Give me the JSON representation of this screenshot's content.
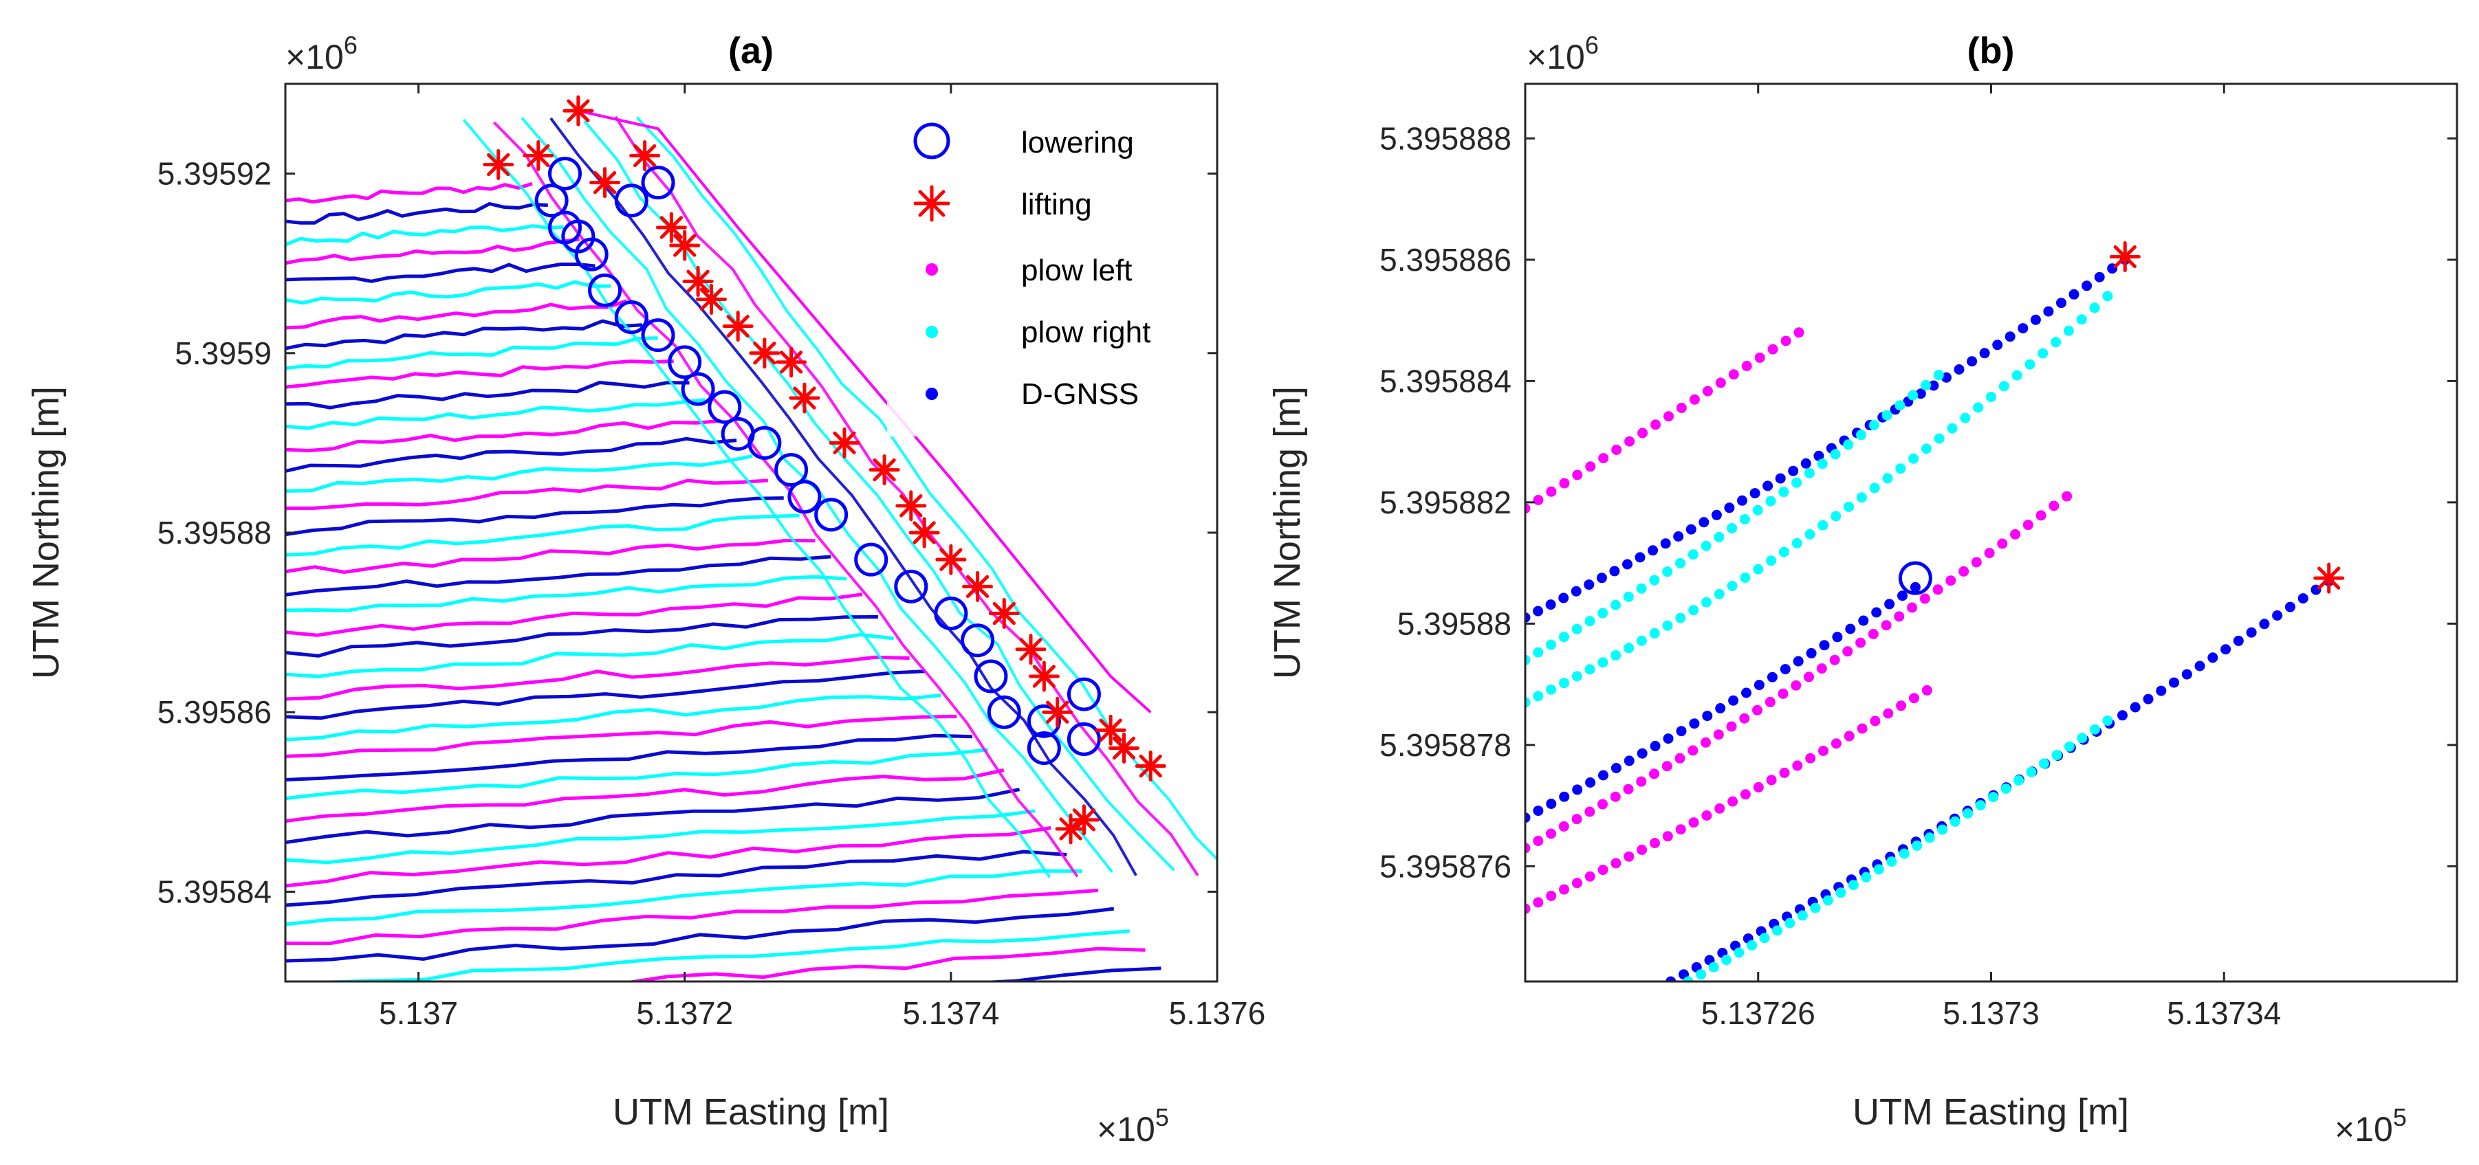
{
  "colors": {
    "lowering": "#0000ff",
    "lifting": "#ff0000",
    "plow_left": "#ff00ff",
    "plow_right": "#00ffff",
    "dgnss": "#0000ff",
    "dgnss_line": "#0a0ad2",
    "axis": "#262626",
    "shade": "#00b0b0"
  },
  "chart_data": [
    {
      "type": "line",
      "panel": "a",
      "title": "(a)",
      "xlabel": "UTM Easting [m]",
      "ylabel": "UTM Northing [m]",
      "x_multiplier": "×10",
      "x_exponent": "5",
      "y_multiplier": "×10",
      "y_exponent": "6",
      "xlim": [
        513690,
        513760
      ],
      "ylim": [
        5395830,
        5395930
      ],
      "xtick_values": [
        513700,
        513720,
        513740,
        513760
      ],
      "xtick_labels": [
        "5.137",
        "5.1372",
        "5.1374",
        "5.1376"
      ],
      "ytick_values": [
        5395840,
        5395860,
        5395880,
        5395900,
        5395920
      ],
      "ytick_labels": [
        "5.39584",
        "5.39586",
        "5.39588",
        "5.3959",
        "5.39592"
      ],
      "legend": {
        "position": "top-right",
        "entries": [
          "lowering",
          "lifting",
          "plow left",
          "plow right",
          "D-GNSS"
        ]
      },
      "field": {
        "left_x": 513690,
        "left_y_top": 5395917,
        "left_y_bottom": 5395826,
        "headland_top": [
          513707,
          5395920
        ],
        "headland_bottom": [
          513745,
          5395846
        ],
        "lane_spacing_m": 2.3,
        "lane_slope": 0.28
      },
      "lowering": [
        [
          513711,
          5395920
        ],
        [
          513710,
          5395917
        ],
        [
          513711,
          5395914
        ],
        [
          513716,
          5395917
        ],
        [
          513718,
          5395919
        ],
        [
          513712,
          5395913
        ],
        [
          513713,
          5395911
        ],
        [
          513714,
          5395907
        ],
        [
          513716,
          5395904
        ],
        [
          513718,
          5395902
        ],
        [
          513720,
          5395899
        ],
        [
          513721,
          5395896
        ],
        [
          513723,
          5395894
        ],
        [
          513724,
          5395891
        ],
        [
          513726,
          5395890
        ],
        [
          513728,
          5395887
        ],
        [
          513729,
          5395884
        ],
        [
          513731,
          5395882
        ],
        [
          513734,
          5395877
        ],
        [
          513737,
          5395874
        ],
        [
          513740,
          5395871
        ],
        [
          513742,
          5395868
        ],
        [
          513743,
          5395864
        ],
        [
          513744,
          5395860
        ],
        [
          513747,
          5395859
        ],
        [
          513750,
          5395862
        ],
        [
          513747,
          5395856
        ],
        [
          513750,
          5395857
        ]
      ],
      "lifting": [
        [
          513706,
          5395921
        ],
        [
          513709,
          5395922
        ],
        [
          513712,
          5395927
        ],
        [
          513714,
          5395919
        ],
        [
          513717,
          5395922
        ],
        [
          513719,
          5395914
        ],
        [
          513720,
          5395912
        ],
        [
          513721,
          5395908
        ],
        [
          513722,
          5395906
        ],
        [
          513724,
          5395903
        ],
        [
          513726,
          5395900
        ],
        [
          513728,
          5395899
        ],
        [
          513729,
          5395895
        ],
        [
          513732,
          5395890
        ],
        [
          513735,
          5395887
        ],
        [
          513737,
          5395883
        ],
        [
          513738,
          5395880
        ],
        [
          513740,
          5395877
        ],
        [
          513742,
          5395874
        ],
        [
          513744,
          5395871
        ],
        [
          513746,
          5395867
        ],
        [
          513747,
          5395864
        ],
        [
          513748,
          5395860
        ],
        [
          513752,
          5395858
        ],
        [
          513753,
          5395856
        ],
        [
          513755,
          5395854
        ],
        [
          513749,
          5395847
        ],
        [
          513750,
          5395848
        ]
      ]
    },
    {
      "type": "scatter",
      "panel": "b",
      "title": "(b)",
      "xlabel": "UTM Easting [m]",
      "ylabel": "UTM Northing [m]",
      "x_multiplier": "×10",
      "x_exponent": "5",
      "y_multiplier": "×10",
      "y_exponent": "6",
      "xlim": [
        513722,
        513738
      ],
      "ylim": [
        5395874.1,
        5395888.9
      ],
      "xtick_values": [
        513726,
        513730,
        513734
      ],
      "xtick_labels": [
        "5.13726",
        "5.1373",
        "5.13734"
      ],
      "ytick_values": [
        5395876,
        5395878,
        5395880,
        5395882,
        5395884,
        5395886,
        5395888
      ],
      "ytick_labels": [
        "5.395876",
        "5.395878",
        "5.39588",
        "5.395882",
        "5.395884",
        "5.395886",
        "5.395888"
      ],
      "series": [
        {
          "name": "D-GNSS",
          "kind": "dgnss",
          "start": [
            513722,
            5395880.1
          ],
          "end": [
            513732.3,
            5395886
          ],
          "curve": 0.15
        },
        {
          "name": "D-GNSS",
          "kind": "dgnss",
          "start": [
            513722,
            5395876.8
          ],
          "end": [
            513728.7,
            5395880.6
          ],
          "curve": 0.1
        },
        {
          "name": "D-GNSS",
          "kind": "dgnss",
          "start": [
            513724.5,
            5395874.1
          ],
          "end": [
            513735.8,
            5395880.7
          ],
          "curve": 0.1
        },
        {
          "name": "plow left",
          "kind": "plow_left",
          "start": [
            513722,
            5395881.9
          ],
          "end": [
            513726.7,
            5395884.8
          ],
          "curve": 0
        },
        {
          "name": "plow left",
          "kind": "plow_left",
          "start": [
            513722,
            5395876.3
          ],
          "end": [
            513731.3,
            5395882.1
          ],
          "curve": 0.15
        },
        {
          "name": "plow left",
          "kind": "plow_left",
          "start": [
            513722,
            5395875.3
          ],
          "end": [
            513728.9,
            5395878.9
          ],
          "curve": 0.1
        },
        {
          "name": "plow right",
          "kind": "plow_right",
          "start": [
            513722,
            5395879.4
          ],
          "end": [
            513729.1,
            5395884.1
          ],
          "curve": 0.15
        },
        {
          "name": "plow right",
          "kind": "plow_right",
          "start": [
            513722,
            5395878.7
          ],
          "end": [
            513732.0,
            5395885.4
          ],
          "curve": 0.3
        },
        {
          "name": "plow right",
          "kind": "plow_right",
          "start": [
            513724.8,
            5395874.1
          ],
          "end": [
            513732.0,
            5395878.4
          ],
          "curve": 0.1
        }
      ],
      "lowering": [
        [
          513728.7,
          5395880.75
        ]
      ],
      "lifting": [
        [
          513732.3,
          5395886.05
        ],
        [
          513735.8,
          5395880.75
        ]
      ]
    }
  ]
}
